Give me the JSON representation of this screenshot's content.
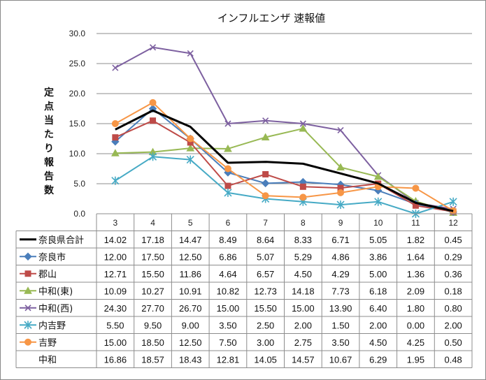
{
  "chart_data": {
    "type": "line",
    "title": "インフルエンザ 速報値",
    "ylabel": "定点当たり報告数",
    "xlabel": "",
    "categories": [
      "3",
      "4",
      "5",
      "6",
      "7",
      "8",
      "9",
      "10",
      "11",
      "12"
    ],
    "ylim": [
      0,
      30
    ],
    "yticks": [
      "0.0",
      "5.0",
      "10.0",
      "15.0",
      "20.0",
      "25.0",
      "30.0"
    ],
    "grid": true,
    "legend": "table-left",
    "series": [
      {
        "name": "奈良県合計",
        "color": "#000000",
        "marker": "none",
        "width": 3,
        "values": [
          14.02,
          17.18,
          14.47,
          8.49,
          8.64,
          8.33,
          6.71,
          5.05,
          1.82,
          0.45
        ],
        "labels": [
          "14.02",
          "17.18",
          "14.47",
          "8.49",
          "8.64",
          "8.33",
          "6.71",
          "5.05",
          "1.82",
          "0.45"
        ]
      },
      {
        "name": "奈良市",
        "color": "#4a7ebb",
        "marker": "diamond",
        "width": 2,
        "values": [
          12.0,
          17.5,
          12.5,
          6.86,
          5.07,
          5.29,
          4.86,
          3.86,
          1.64,
          0.29
        ],
        "labels": [
          "12.00",
          "17.50",
          "12.50",
          "6.86",
          "5.07",
          "5.29",
          "4.86",
          "3.86",
          "1.64",
          "0.29"
        ]
      },
      {
        "name": "郡山",
        "color": "#be4b48",
        "marker": "square",
        "width": 2,
        "values": [
          12.71,
          15.5,
          11.86,
          4.64,
          6.57,
          4.5,
          4.29,
          5.0,
          1.36,
          0.36
        ],
        "labels": [
          "12.71",
          "15.50",
          "11.86",
          "4.64",
          "6.57",
          "4.50",
          "4.29",
          "5.00",
          "1.36",
          "0.36"
        ]
      },
      {
        "name": "中和(東)",
        "color": "#98b954",
        "marker": "triangle",
        "width": 2,
        "values": [
          10.09,
          10.27,
          10.91,
          10.82,
          12.73,
          14.18,
          7.73,
          6.18,
          2.09,
          0.18
        ],
        "labels": [
          "10.09",
          "10.27",
          "10.91",
          "10.82",
          "12.73",
          "14.18",
          "7.73",
          "6.18",
          "2.09",
          "0.18"
        ]
      },
      {
        "name": "中和(西)",
        "color": "#7d60a0",
        "marker": "x",
        "width": 2,
        "values": [
          24.3,
          27.7,
          26.7,
          15.0,
          15.5,
          15.0,
          13.9,
          6.4,
          1.8,
          0.8
        ],
        "labels": [
          "24.30",
          "27.70",
          "26.70",
          "15.00",
          "15.50",
          "15.00",
          "13.90",
          "6.40",
          "1.80",
          "0.80"
        ]
      },
      {
        "name": "内吉野",
        "color": "#46aac5",
        "marker": "star",
        "width": 2,
        "values": [
          5.5,
          9.5,
          9.0,
          3.5,
          2.5,
          2.0,
          1.5,
          2.0,
          0.0,
          2.0
        ],
        "labels": [
          "5.50",
          "9.50",
          "9.00",
          "3.50",
          "2.50",
          "2.00",
          "1.50",
          "2.00",
          "0.00",
          "2.00"
        ]
      },
      {
        "name": "吉野",
        "color": "#f79646",
        "marker": "circle",
        "width": 2,
        "values": [
          15.0,
          18.5,
          12.5,
          7.5,
          3.0,
          2.75,
          3.5,
          4.5,
          4.25,
          0.5
        ],
        "labels": [
          "15.00",
          "18.50",
          "12.50",
          "7.50",
          "3.00",
          "2.75",
          "3.50",
          "4.50",
          "4.25",
          "0.50"
        ]
      }
    ],
    "extra_rows": [
      {
        "name": "中和",
        "labels": [
          "16.86",
          "18.57",
          "18.43",
          "12.81",
          "14.05",
          "14.57",
          "10.67",
          "6.29",
          "1.95",
          "0.48"
        ]
      }
    ]
  }
}
